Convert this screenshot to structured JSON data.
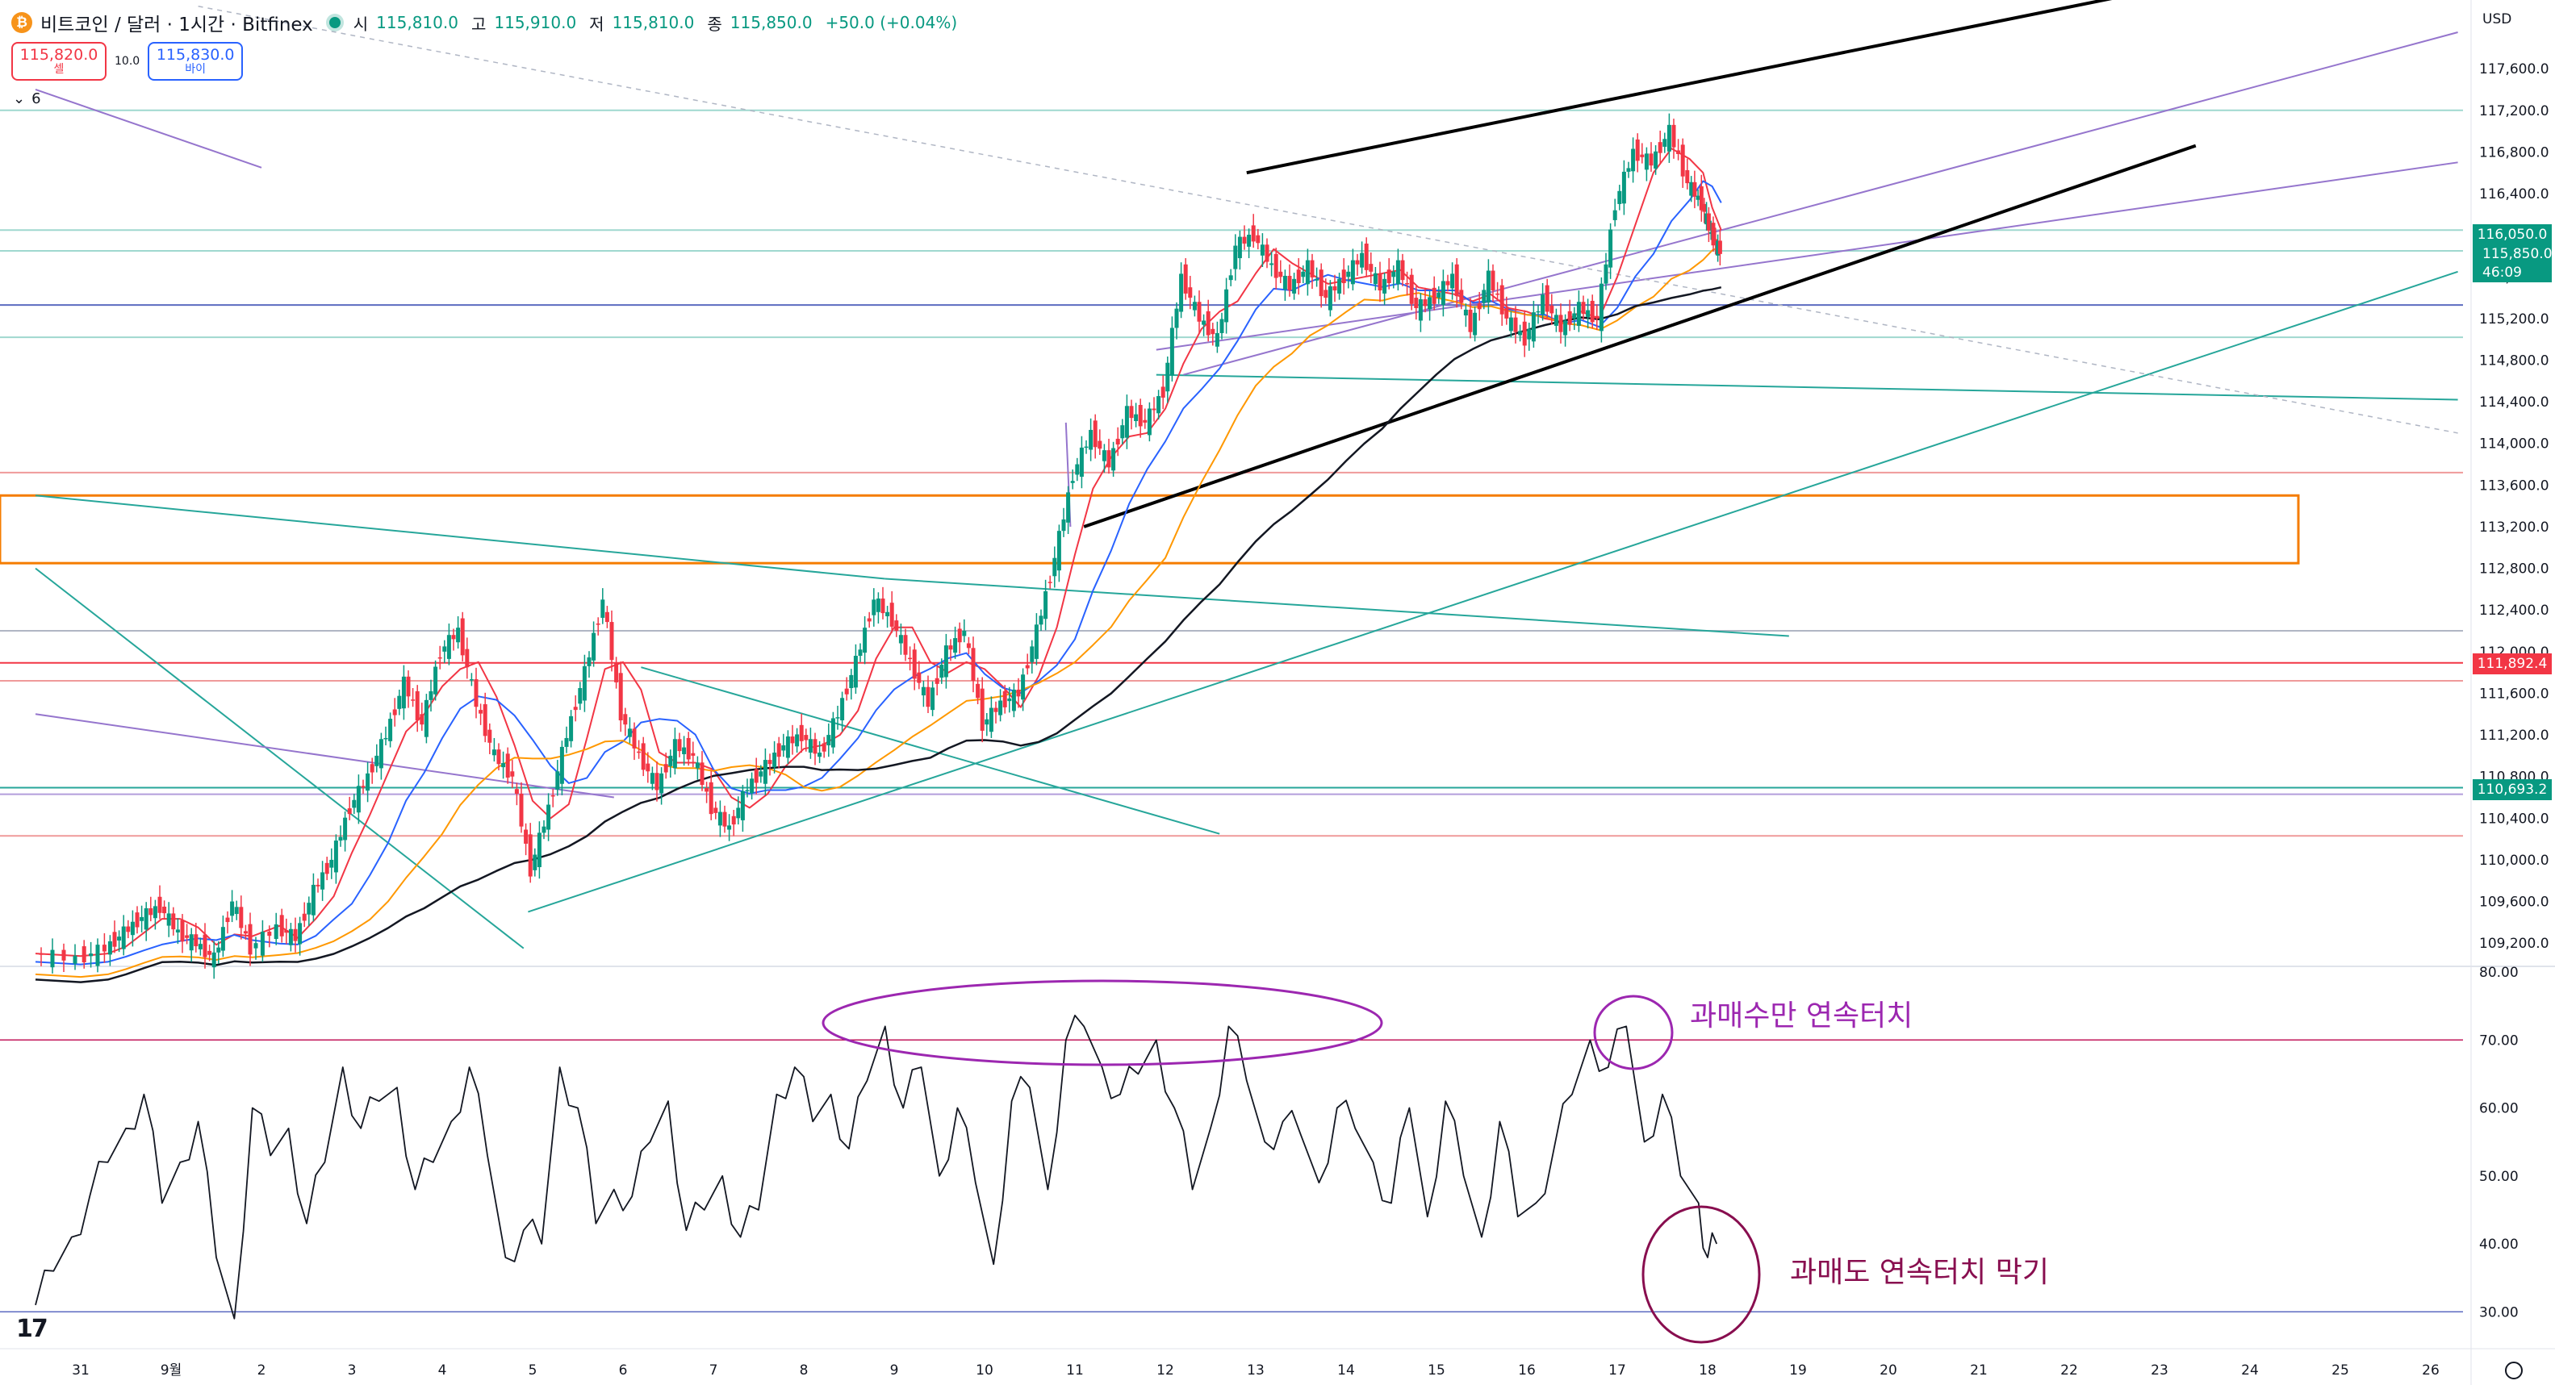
{
  "header": {
    "coin_icon": "bitcoin-icon",
    "title": "비트코인 / 달러 · 1시간 · Bitfinex",
    "open_label": "시",
    "open": "115,810.0",
    "high_label": "고",
    "high": "115,910.0",
    "low_label": "저",
    "low": "115,810.0",
    "close_label": "종",
    "close": "115,850.0",
    "change": "+50.0 (+0.04%)"
  },
  "trade": {
    "sell_price": "115,820.0",
    "sell_label": "셀",
    "spread": "10.0",
    "buy_price": "115,830.0",
    "buy_label": "바이"
  },
  "indicator_toggle": {
    "icon": "chevron-down-icon",
    "count": "6"
  },
  "currency": "USD",
  "price_tags": {
    "level_1": "116,050.0",
    "current": "115,850.0",
    "countdown": "46:09",
    "level_red": "111,892.4",
    "level_teal": "110,693.2"
  },
  "annotations": {
    "overbought": "과매수만 연속터치",
    "oversold": "과매도 연속터치 막기"
  },
  "colors": {
    "up": "#089981",
    "down": "#f23645",
    "ema_fast": "#f23645",
    "ema_mid": "#2962ff",
    "ema_slow": "#ff9800",
    "ma_long": "#131722",
    "purple": "#9c27b0",
    "orange_box": "#f57c00"
  },
  "chart_data": [
    {
      "type": "line",
      "panel": "price",
      "y_ticks": [
        109200,
        109600,
        110000,
        110400,
        110800,
        111200,
        111600,
        112000,
        112400,
        112800,
        113200,
        113600,
        114000,
        114400,
        114800,
        115200,
        115600,
        116000,
        116400,
        116800,
        117200,
        117600
      ],
      "y_tick_labels": [
        "109,200.0",
        "109,600.0",
        "110,000.0",
        "110,400.0",
        "110,800.0",
        "111,200.0",
        "111,600.0",
        "112,000.0",
        "112,400.0",
        "112,800.0",
        "113,200.0",
        "113,600.0",
        "114,000.0",
        "114,400.0",
        "114,800.0",
        "115,200.0",
        "115,600.0",
        "116,000.0",
        "116,400.0",
        "116,800.0",
        "117,200.0",
        "117,600.0"
      ],
      "ylim": [
        109000,
        117950
      ],
      "x_labels": [
        "31",
        "9월",
        "2",
        "3",
        "4",
        "5",
        "6",
        "7",
        "8",
        "9",
        "10",
        "11",
        "12",
        "13",
        "14",
        "15",
        "16",
        "17",
        "18",
        "19",
        "20",
        "21",
        "22",
        "23",
        "24",
        "25",
        "26"
      ],
      "x_range_days": [
        -0.5,
        26.3
      ],
      "price_path": [
        [
          -0.5,
          109100
        ],
        [
          0,
          109050
        ],
        [
          0.3,
          109150
        ],
        [
          0.5,
          109300
        ],
        [
          0.7,
          109450
        ],
        [
          0.9,
          109550
        ],
        [
          1.1,
          109300
        ],
        [
          1.3,
          109200
        ],
        [
          1.5,
          109050
        ],
        [
          1.7,
          109600
        ],
        [
          1.9,
          109150
        ],
        [
          2.2,
          109350
        ],
        [
          2.4,
          109250
        ],
        [
          2.6,
          109700
        ],
        [
          2.8,
          110000
        ],
        [
          3.0,
          110500
        ],
        [
          3.2,
          110800
        ],
        [
          3.4,
          111200
        ],
        [
          3.6,
          111700
        ],
        [
          3.8,
          111300
        ],
        [
          4.0,
          112000
        ],
        [
          4.2,
          112200
        ],
        [
          4.4,
          111500
        ],
        [
          4.6,
          111000
        ],
        [
          4.8,
          110800
        ],
        [
          5.0,
          109900
        ],
        [
          5.2,
          110500
        ],
        [
          5.4,
          111200
        ],
        [
          5.6,
          111800
        ],
        [
          5.8,
          112500
        ],
        [
          6.0,
          111400
        ],
        [
          6.2,
          111000
        ],
        [
          6.4,
          110700
        ],
        [
          6.6,
          111100
        ],
        [
          6.8,
          111000
        ],
        [
          7.0,
          110500
        ],
        [
          7.2,
          110300
        ],
        [
          7.4,
          110700
        ],
        [
          7.6,
          110900
        ],
        [
          7.8,
          111100
        ],
        [
          8.0,
          111200
        ],
        [
          8.2,
          111000
        ],
        [
          8.4,
          111400
        ],
        [
          8.6,
          111900
        ],
        [
          8.8,
          112500
        ],
        [
          9.0,
          112300
        ],
        [
          9.2,
          111900
        ],
        [
          9.4,
          111500
        ],
        [
          9.6,
          112000
        ],
        [
          9.8,
          112200
        ],
        [
          10.0,
          111300
        ],
        [
          10.2,
          111500
        ],
        [
          10.4,
          111600
        ],
        [
          10.6,
          112200
        ],
        [
          10.8,
          112900
        ],
        [
          11.0,
          113700
        ],
        [
          11.2,
          114100
        ],
        [
          11.4,
          113800
        ],
        [
          11.6,
          114300
        ],
        [
          11.8,
          114200
        ],
        [
          12.0,
          114500
        ],
        [
          12.2,
          115600
        ],
        [
          12.4,
          115200
        ],
        [
          12.6,
          115000
        ],
        [
          12.8,
          115900
        ],
        [
          13.0,
          116000
        ],
        [
          13.2,
          115700
        ],
        [
          13.4,
          115500
        ],
        [
          13.6,
          115700
        ],
        [
          13.8,
          115400
        ],
        [
          14.0,
          115600
        ],
        [
          14.2,
          115800
        ],
        [
          14.4,
          115500
        ],
        [
          14.6,
          115700
        ],
        [
          14.8,
          115300
        ],
        [
          15.0,
          115400
        ],
        [
          15.2,
          115600
        ],
        [
          15.4,
          115100
        ],
        [
          15.6,
          115600
        ],
        [
          15.8,
          115200
        ],
        [
          16.0,
          115000
        ],
        [
          16.2,
          115400
        ],
        [
          16.4,
          115100
        ],
        [
          16.6,
          115300
        ],
        [
          16.8,
          115200
        ],
        [
          17.0,
          116300
        ],
        [
          17.2,
          116800
        ],
        [
          17.4,
          116700
        ],
        [
          17.6,
          117000
        ],
        [
          17.8,
          116500
        ],
        [
          17.95,
          116300
        ],
        [
          18.05,
          116000
        ],
        [
          18.15,
          115850
        ]
      ]
    },
    {
      "type": "line",
      "panel": "oscillator",
      "y_ticks": [
        30,
        40,
        50,
        60,
        70,
        80
      ],
      "y_tick_labels": [
        "30.00",
        "40.00",
        "50.00",
        "60.00",
        "70.00",
        "80.00"
      ],
      "ylim": [
        26,
        80
      ],
      "reference_lines": [
        70,
        30
      ],
      "values_x": [
        -0.5,
        -0.3,
        -0.1,
        0.1,
        0.3,
        0.5,
        0.7,
        0.9,
        1.1,
        1.3,
        1.5,
        1.7,
        1.9,
        2.1,
        2.3,
        2.5,
        2.7,
        2.9,
        3.1,
        3.3,
        3.5,
        3.7,
        3.9,
        4.1,
        4.3,
        4.5,
        4.7,
        4.9,
        5.1,
        5.3,
        5.5,
        5.7,
        5.9,
        6.1,
        6.3,
        6.5,
        6.7,
        6.9,
        7.1,
        7.3,
        7.5,
        7.7,
        7.9,
        8.1,
        8.3,
        8.5,
        8.7,
        8.9,
        9.1,
        9.3,
        9.5,
        9.7,
        9.9,
        10.1,
        10.3,
        10.5,
        10.7,
        10.9,
        11.1,
        11.3,
        11.5,
        11.7,
        11.9,
        12.1,
        12.3,
        12.5,
        12.7,
        12.9,
        13.1,
        13.3,
        13.5,
        13.7,
        13.9,
        14.1,
        14.3,
        14.5,
        14.7,
        14.9,
        15.1,
        15.3,
        15.5,
        15.7,
        15.9,
        16.1,
        16.3,
        16.5,
        16.7,
        16.9,
        17.1,
        17.3,
        17.5,
        17.7,
        17.9,
        18.0,
        18.1
      ],
      "values": [
        31,
        36,
        41,
        47,
        52,
        57,
        62,
        46,
        52,
        58,
        38,
        29,
        60,
        53,
        57,
        43,
        52,
        66,
        57,
        61,
        63,
        48,
        52,
        58,
        66,
        53,
        38,
        42,
        40,
        66,
        60,
        43,
        48,
        47,
        55,
        61,
        42,
        45,
        50,
        41,
        45,
        62,
        66,
        58,
        62,
        54,
        64,
        72,
        60,
        66,
        50,
        60,
        49,
        37,
        61,
        63,
        48,
        70,
        72,
        66,
        62,
        65,
        70,
        60,
        48,
        57,
        72,
        64,
        55,
        58,
        56,
        49,
        60,
        57,
        52,
        46,
        60,
        44,
        61,
        50,
        41,
        58,
        44,
        46,
        54,
        62,
        70,
        66,
        72,
        55,
        62,
        50,
        46,
        38,
        40
      ]
    }
  ]
}
